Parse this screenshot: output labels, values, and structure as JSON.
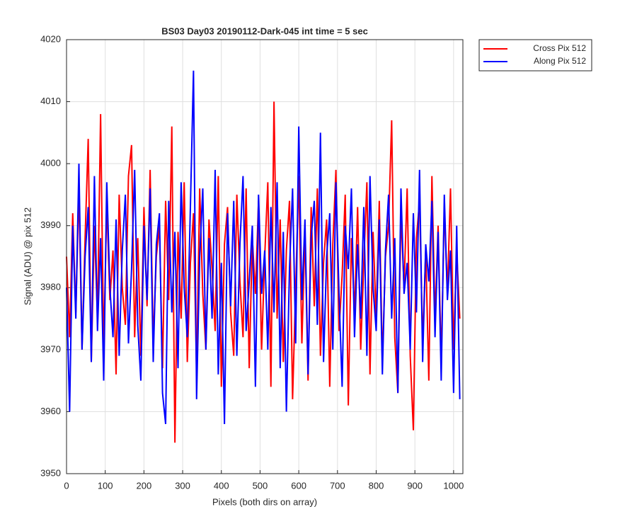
{
  "chart_data": {
    "type": "line",
    "title": "BS03 Day03 20190112-Dark-045 int time = 5 sec",
    "xlabel": "Pixels (both dirs on array)",
    "ylabel": "Signal (ADU) @ pix 512",
    "x": [
      0,
      8,
      16,
      24,
      32,
      40,
      48,
      56,
      64,
      72,
      80,
      88,
      96,
      104,
      112,
      120,
      128,
      136,
      144,
      152,
      160,
      168,
      176,
      184,
      192,
      200,
      208,
      216,
      224,
      232,
      240,
      248,
      256,
      264,
      272,
      280,
      288,
      296,
      304,
      312,
      320,
      328,
      336,
      344,
      352,
      360,
      368,
      376,
      384,
      392,
      400,
      408,
      416,
      424,
      432,
      440,
      448,
      456,
      464,
      472,
      480,
      488,
      496,
      504,
      512,
      520,
      528,
      536,
      544,
      552,
      560,
      568,
      576,
      584,
      592,
      600,
      608,
      616,
      624,
      632,
      640,
      648,
      656,
      664,
      672,
      680,
      688,
      696,
      704,
      712,
      720,
      728,
      736,
      744,
      752,
      760,
      768,
      776,
      784,
      792,
      800,
      808,
      816,
      824,
      832,
      840,
      848,
      856,
      864,
      872,
      880,
      888,
      896,
      904,
      912,
      920,
      928,
      936,
      944,
      952,
      960,
      968,
      976,
      984,
      992,
      1000,
      1008,
      1016
    ],
    "series": [
      {
        "name": "Cross Pix 512",
        "color": "#ff0000",
        "values": [
          3985,
          3972,
          3992,
          3976,
          3996,
          3970,
          3988,
          4004,
          3968,
          3990,
          3975,
          4008,
          3970,
          3994,
          3978,
          3986,
          3966,
          3995,
          3980,
          3974,
          3998,
          4003,
          3972,
          3988,
          3969,
          3993,
          3977,
          3999,
          3971,
          3985,
          3990,
          3967,
          3994,
          3978,
          4006,
          3955,
          3989,
          3975,
          3997,
          3968,
          3984,
          3992,
          3966,
          3996,
          3979,
          3970,
          3991,
          3983,
          3973,
          3998,
          3964,
          3987,
          3993,
          3976,
          3969,
          3995,
          3981,
          3972,
          3996,
          3967,
          3988,
          3979,
          3994,
          3970,
          3985,
          3997,
          3964,
          4010,
          3975,
          3991,
          3968,
          3986,
          3994,
          3962,
          3980,
          3998,
          3971,
          3989,
          3965,
          3993,
          3977,
          3996,
          3969,
          3984,
          3991,
          3964,
          3987,
          3999,
          3973,
          3982,
          3995,
          3961,
          3988,
          3976,
          3993,
          3970,
          3984,
          3997,
          3966,
          3989,
          3975,
          3994,
          3968,
          3985,
          3990,
          4007,
          3972,
          3963,
          3992,
          3980,
          3996,
          3969,
          3957,
          3988,
          3994,
          3971,
          3986,
          3965,
          3998,
          3975,
          3990,
          3968,
          3993,
          3979,
          3996,
          3970,
          3986,
          3975
        ]
      },
      {
        "name": "Along Pix 512",
        "color": "#0000ff",
        "values": [
          3980,
          3960,
          3990,
          3975,
          4000,
          3970,
          3985,
          3993,
          3968,
          3998,
          3973,
          3988,
          3965,
          3997,
          3980,
          3972,
          3991,
          3969,
          3986,
          3995,
          3971,
          3983,
          3999,
          3974,
          3965,
          3990,
          3978,
          3996,
          3968,
          3987,
          3992,
          3963,
          3958,
          3994,
          3976,
          3989,
          3967,
          3997,
          3980,
          3972,
          3993,
          4015,
          3962,
          3985,
          3996,
          3970,
          3988,
          3975,
          3999,
          3966,
          3984,
          3958,
          3992,
          3977,
          3994,
          3969,
          3987,
          3998,
          3973,
          3981,
          3990,
          3964,
          3995,
          3979,
          3986,
          3970,
          3993,
          3976,
          3997,
          3967,
          3989,
          3960,
          3983,
          3996,
          3971,
          4006,
          3978,
          3991,
          3966,
          3988,
          3994,
          3974,
          4005,
          3968,
          3985,
          3992,
          3970,
          3997,
          3979,
          3964,
          3990,
          3983,
          3996,
          3972,
          3987,
          3975,
          3993,
          3969,
          3998,
          3980,
          3973,
          3991,
          3966,
          3986,
          3995,
          3975,
          3988,
          3963,
          3996,
          3979,
          3984,
          3970,
          3992,
          3976,
          3999,
          3968,
          3987,
          3981,
          3994,
          3972,
          3989,
          3965,
          3995,
          3978,
          3986,
          3963,
          3990,
          3962
        ]
      }
    ],
    "xlim": [
      0,
      1024
    ],
    "xticks": [
      0,
      100,
      200,
      300,
      400,
      500,
      600,
      700,
      800,
      900,
      1000
    ],
    "ylim": [
      3950,
      4020
    ],
    "yticks": [
      3950,
      3960,
      3970,
      3980,
      3990,
      4000,
      4010,
      4020
    ],
    "grid": true,
    "legend": "northeastoutside"
  }
}
